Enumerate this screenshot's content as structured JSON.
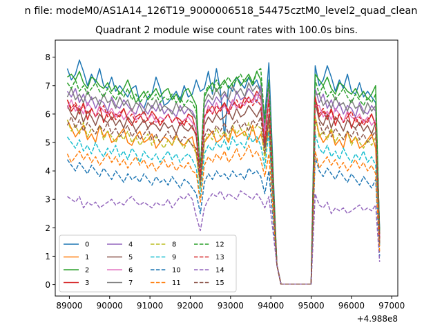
{
  "figure": {
    "suptitle": "n file: modeM0/AS1A14_126T19_9000006518_54475cztM0_level2_quad_clean",
    "title": "Quadrant 2 module wise count rates with 100.0s bins.",
    "x_offset_label": "+4.988e8"
  },
  "chart_data": {
    "type": "line",
    "title": "Quadrant 2 module wise count rates with 100.0s bins.",
    "xlabel": "",
    "ylabel": "",
    "x_offset": 498800000,
    "xlim": [
      88650,
      97150
    ],
    "ylim": [
      -0.4,
      8.6
    ],
    "xticks": [
      89000,
      90000,
      91000,
      92000,
      93000,
      94000,
      95000,
      96000,
      97000
    ],
    "yticks": [
      0,
      1,
      2,
      3,
      4,
      5,
      6,
      7,
      8
    ],
    "legend_loc": "lower-left",
    "gap": {
      "start": 94100,
      "end": 95050
    },
    "x_start": 88950,
    "bin": 100,
    "series": [
      {
        "name": "0",
        "color": "#1f77b4",
        "dash": "solid",
        "values": [
          7.6,
          7.2,
          7.4,
          7.9,
          7.5,
          7.0,
          7.4,
          7.1,
          7.6,
          7.0,
          6.9,
          7.3,
          6.8,
          7.0,
          6.8,
          6.6,
          6.9,
          7.0,
          6.4,
          6.2,
          6.6,
          6.7,
          7.3,
          6.9,
          6.3,
          6.4,
          6.6,
          6.8,
          6.5,
          7.0,
          6.6,
          6.7,
          7.2,
          6.8,
          6.9,
          7.5,
          6.7,
          7.6,
          6.8,
          5.2,
          7.0,
          6.8,
          7.3,
          7.1,
          6.9,
          7.3,
          7.0,
          7.2,
          6.8,
          5.9,
          7.8
        ]
      },
      {
        "name": "1",
        "color": "#ff7f0e",
        "dash": "solid",
        "values": [
          5.8,
          5.5,
          5.2,
          5.4,
          5.6,
          5.1,
          5.3,
          5.0,
          5.6,
          5.2,
          5.4,
          5.0,
          5.1,
          5.3,
          5.5,
          5.0,
          4.9,
          5.2,
          5.4,
          5.0,
          5.1,
          5.3,
          4.8,
          5.0,
          5.2,
          5.1,
          4.9,
          5.3,
          5.0,
          4.9,
          5.1,
          5.2,
          4.6,
          3.5,
          5.0,
          5.2,
          5.4,
          5.0,
          5.1,
          5.3,
          5.0,
          5.5,
          5.2,
          5.3,
          5.4,
          5.1,
          5.6,
          5.0,
          5.3,
          4.8,
          5.4
        ]
      },
      {
        "name": "2",
        "color": "#2ca02c",
        "dash": "solid",
        "values": [
          7.3,
          7.4,
          7.2,
          7.5,
          7.1,
          6.9,
          7.3,
          7.2,
          7.0,
          6.9,
          7.1,
          6.8,
          7.0,
          6.7,
          6.9,
          7.2,
          6.8,
          6.4,
          6.6,
          6.8,
          6.5,
          6.7,
          6.9,
          6.6,
          6.8,
          6.9,
          6.5,
          6.7,
          6.4,
          6.8,
          6.9,
          6.6,
          6.3,
          4.0,
          6.6,
          6.9,
          7.1,
          6.8,
          7.0,
          7.2,
          6.9,
          7.1,
          7.3,
          7.0,
          7.2,
          7.4,
          7.1,
          7.5,
          7.2,
          5.6,
          7.0
        ]
      },
      {
        "name": "3",
        "color": "#d62728",
        "dash": "solid",
        "values": [
          6.5,
          6.1,
          6.3,
          6.0,
          6.4,
          5.8,
          6.2,
          5.9,
          6.3,
          5.7,
          6.1,
          5.8,
          6.0,
          5.9,
          6.2,
          5.8,
          5.6,
          5.9,
          6.0,
          5.7,
          5.8,
          6.1,
          5.9,
          5.6,
          5.8,
          6.0,
          5.7,
          5.9,
          5.8,
          5.6,
          6.0,
          5.9,
          5.4,
          3.8,
          5.9,
          6.1,
          6.3,
          6.0,
          6.2,
          6.4,
          6.1,
          6.5,
          6.3,
          6.2,
          6.6,
          6.4,
          6.5,
          6.8,
          6.6,
          5.0,
          6.7
        ]
      },
      {
        "name": "4",
        "color": "#9467bd",
        "dash": "solid",
        "values": [
          6.8,
          6.6,
          6.9,
          6.4,
          6.7,
          6.3,
          6.6,
          6.2,
          6.5,
          6.4,
          6.1,
          6.6,
          6.3,
          6.2,
          6.5,
          6.3,
          6.1,
          6.0,
          6.4,
          6.2,
          6.0,
          6.3,
          6.1,
          6.4,
          6.0,
          6.2,
          6.1,
          5.9,
          6.3,
          6.0,
          6.2,
          6.1,
          5.8,
          3.9,
          6.2,
          6.5,
          6.3,
          6.6,
          6.4,
          6.7,
          6.5,
          6.3,
          6.8,
          6.5,
          6.6,
          6.9,
          6.7,
          6.4,
          7.0,
          5.4,
          6.8
        ]
      },
      {
        "name": "5",
        "color": "#8c564b",
        "dash": "solid",
        "values": [
          6.3,
          6.0,
          5.8,
          6.2,
          5.7,
          6.1,
          5.9,
          5.6,
          6.0,
          5.8,
          5.7,
          5.9,
          5.6,
          5.8,
          5.5,
          5.9,
          5.7,
          5.4,
          5.6,
          5.8,
          5.5,
          5.7,
          5.6,
          5.4,
          5.7,
          5.5,
          5.6,
          5.3,
          5.7,
          5.5,
          5.4,
          5.6,
          5.2,
          3.7,
          5.6,
          5.9,
          5.7,
          6.0,
          5.8,
          5.9,
          6.1,
          5.8,
          6.2,
          5.9,
          6.0,
          6.3,
          6.1,
          5.9,
          6.2,
          4.8,
          6.0
        ]
      },
      {
        "name": "6",
        "color": "#e377c2",
        "dash": "solid",
        "values": [
          6.2,
          6.5,
          6.1,
          6.3,
          6.0,
          6.4,
          6.2,
          5.9,
          6.3,
          6.1,
          6.0,
          6.2,
          5.9,
          6.1,
          5.8,
          6.0,
          6.2,
          5.8,
          5.9,
          6.1,
          5.8,
          6.0,
          5.7,
          5.9,
          5.8,
          6.0,
          5.7,
          5.9,
          5.6,
          5.8,
          5.9,
          5.7,
          5.5,
          3.9,
          5.8,
          6.3,
          6.0,
          6.4,
          6.1,
          6.3,
          6.0,
          6.5,
          6.2,
          6.4,
          6.3,
          6.6,
          6.4,
          6.7,
          6.5,
          5.2,
          6.9
        ]
      },
      {
        "name": "7",
        "color": "#7f7f7f",
        "dash": "solid",
        "values": [
          6.6,
          6.9,
          6.5,
          6.7,
          6.4,
          6.8,
          6.5,
          6.6,
          6.3,
          6.7,
          6.4,
          6.5,
          6.2,
          6.6,
          6.3,
          6.5,
          6.1,
          6.4,
          6.3,
          6.0,
          6.4,
          6.2,
          6.5,
          6.1,
          6.3,
          6.2,
          6.0,
          6.4,
          6.1,
          6.3,
          6.2,
          6.0,
          5.8,
          4.1,
          6.4,
          6.7,
          6.5,
          6.9,
          6.6,
          6.8,
          6.5,
          7.0,
          6.7,
          6.9,
          6.6,
          7.1,
          6.8,
          7.0,
          6.8,
          5.6,
          7.2
        ]
      },
      {
        "name": "8",
        "color": "#bcbd22",
        "dash": "dashed",
        "values": [
          5.8,
          5.4,
          5.6,
          5.3,
          5.7,
          5.2,
          5.5,
          5.3,
          5.6,
          5.1,
          5.4,
          5.2,
          5.0,
          5.3,
          5.1,
          5.4,
          5.0,
          5.2,
          4.9,
          5.1,
          5.3,
          4.9,
          5.2,
          5.0,
          4.8,
          5.1,
          4.9,
          5.2,
          5.0,
          4.8,
          5.1,
          4.9,
          4.6,
          3.4,
          5.0,
          5.3,
          5.1,
          5.5,
          5.2,
          5.4,
          5.1,
          5.6,
          5.3,
          5.5,
          5.2,
          5.7,
          5.4,
          5.6,
          5.5,
          4.4,
          5.8
        ]
      },
      {
        "name": "9",
        "color": "#17becf",
        "dash": "dashed",
        "values": [
          5.2,
          5.0,
          4.8,
          5.1,
          4.7,
          4.9,
          4.6,
          5.0,
          4.7,
          4.5,
          4.8,
          4.6,
          4.9,
          4.5,
          4.7,
          4.4,
          4.8,
          4.6,
          4.3,
          4.7,
          4.5,
          4.4,
          4.6,
          4.3,
          4.5,
          4.7,
          4.4,
          4.6,
          4.3,
          4.5,
          4.6,
          4.4,
          4.1,
          3.1,
          4.6,
          4.9,
          4.7,
          5.0,
          4.8,
          5.1,
          4.7,
          5.2,
          4.9,
          5.0,
          4.8,
          5.3,
          5.0,
          5.2,
          4.9,
          4.1,
          5.4
        ]
      },
      {
        "name": "10",
        "color": "#1f77b4",
        "dash": "dashed",
        "values": [
          4.4,
          4.2,
          4.0,
          4.3,
          4.1,
          3.9,
          4.2,
          4.0,
          3.8,
          4.1,
          3.9,
          3.7,
          4.0,
          3.8,
          3.6,
          3.9,
          3.7,
          3.8,
          3.6,
          3.9,
          3.7,
          3.5,
          3.8,
          3.6,
          3.7,
          3.5,
          3.8,
          3.6,
          3.4,
          3.7,
          3.6,
          3.4,
          3.2,
          2.5,
          3.6,
          3.9,
          3.7,
          4.0,
          3.8,
          3.9,
          3.7,
          4.0,
          3.8,
          3.9,
          3.7,
          4.1,
          3.9,
          4.0,
          3.8,
          3.2,
          4.0
        ]
      },
      {
        "name": "11",
        "color": "#ff7f0e",
        "dash": "dashed",
        "values": [
          4.6,
          4.3,
          4.5,
          4.7,
          4.4,
          4.6,
          4.3,
          4.5,
          4.2,
          4.4,
          4.6,
          4.3,
          4.5,
          4.2,
          4.4,
          4.1,
          4.3,
          4.5,
          4.2,
          4.4,
          4.1,
          4.3,
          4.0,
          4.2,
          4.4,
          4.1,
          4.3,
          4.0,
          4.2,
          4.1,
          4.3,
          4.0,
          3.9,
          2.9,
          4.2,
          4.5,
          4.3,
          4.6,
          4.4,
          4.7,
          4.3,
          4.5,
          4.8,
          4.4,
          4.6,
          4.9,
          4.5,
          4.7,
          4.4,
          3.8,
          4.6
        ]
      },
      {
        "name": "12",
        "color": "#2ca02c",
        "dash": "dashed",
        "values": [
          7.1,
          6.9,
          7.2,
          6.8,
          7.0,
          6.7,
          6.9,
          7.1,
          6.8,
          6.6,
          6.9,
          6.7,
          6.5,
          6.8,
          6.6,
          6.9,
          6.5,
          6.7,
          6.4,
          6.6,
          6.8,
          6.5,
          6.7,
          6.4,
          6.6,
          6.5,
          6.7,
          6.4,
          6.6,
          6.3,
          6.5,
          6.4,
          6.1,
          4.1,
          6.7,
          7.0,
          6.8,
          7.2,
          6.9,
          7.1,
          7.3,
          7.0,
          7.2,
          7.4,
          7.1,
          7.3,
          7.0,
          7.5,
          7.6,
          5.7,
          7.2
        ]
      },
      {
        "name": "13",
        "color": "#d62728",
        "dash": "dashed",
        "values": [
          6.5,
          6.2,
          6.4,
          6.1,
          6.3,
          6.0,
          6.2,
          5.9,
          6.1,
          6.3,
          5.9,
          6.1,
          5.8,
          6.0,
          6.2,
          5.8,
          6.0,
          5.7,
          5.9,
          6.1,
          5.8,
          5.6,
          5.9,
          5.7,
          5.8,
          6.0,
          5.7,
          5.9,
          5.6,
          5.8,
          5.7,
          5.5,
          5.3,
          3.8,
          5.9,
          6.2,
          6.0,
          6.3,
          6.1,
          6.4,
          6.0,
          6.3,
          6.5,
          6.2,
          6.4,
          6.6,
          6.3,
          6.5,
          6.3,
          5.0,
          6.5
        ]
      },
      {
        "name": "14",
        "color": "#9467bd",
        "dash": "dashed",
        "values": [
          3.1,
          3.0,
          2.9,
          3.1,
          2.7,
          2.9,
          2.8,
          2.9,
          2.7,
          2.8,
          2.9,
          3.0,
          2.8,
          2.9,
          2.8,
          3.0,
          3.1,
          2.9,
          2.8,
          2.9,
          2.8,
          2.7,
          2.9,
          2.8,
          2.8,
          3.0,
          2.7,
          2.9,
          3.1,
          3.0,
          3.2,
          3.0,
          2.4,
          1.9,
          2.7,
          3.0,
          3.2,
          3.1,
          3.3,
          3.0,
          3.2,
          3.1,
          3.0,
          3.3,
          3.2,
          3.1,
          3.0,
          3.2,
          3.0,
          2.7,
          3.1
        ]
      },
      {
        "name": "15",
        "color": "#8c564b",
        "dash": "dashed",
        "values": [
          5.6,
          5.9,
          5.5,
          5.8,
          5.4,
          5.7,
          5.5,
          5.3,
          5.6,
          5.4,
          5.7,
          5.3,
          5.5,
          5.2,
          5.4,
          5.6,
          5.2,
          5.4,
          5.1,
          5.3,
          5.5,
          5.1,
          5.3,
          5.0,
          5.2,
          5.4,
          5.1,
          5.3,
          5.0,
          5.2,
          5.1,
          4.9,
          4.8,
          3.5,
          5.2,
          5.5,
          5.3,
          5.6,
          5.4,
          5.7,
          5.3,
          5.6,
          5.8,
          5.5,
          5.7,
          5.4,
          5.8,
          5.6,
          5.9,
          4.6,
          5.8
        ]
      }
    ]
  }
}
